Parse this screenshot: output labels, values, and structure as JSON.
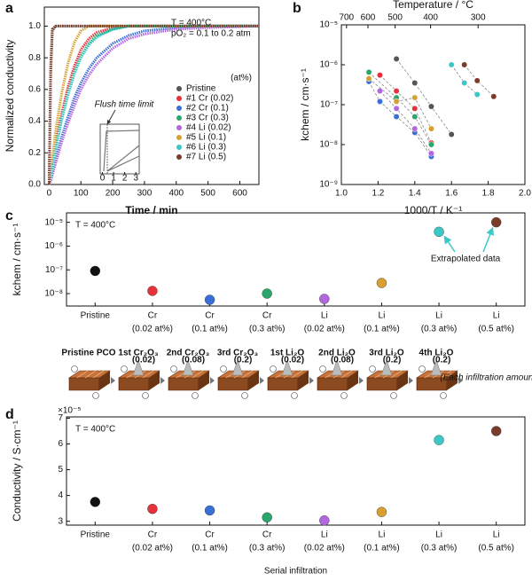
{
  "chart_data": [
    {
      "type": "line",
      "panel_label": "a",
      "x_label": "Time / min",
      "y_label": "Normalized conductivity",
      "annotations": [
        "T = 400°C",
        "pO₂ = 0.1 to 0.2 atm"
      ],
      "legend_title": "(at%)",
      "legend_position": "lower right",
      "x": [
        0,
        5,
        10,
        20,
        40,
        60,
        80,
        100,
        125,
        150,
        200,
        250,
        300,
        400,
        500,
        660
      ],
      "series": [
        {
          "name": "Pristine",
          "color": "#555555",
          "values": [
            0,
            0.7,
            0.97,
            1,
            1,
            1,
            1,
            1,
            1,
            1,
            1,
            1,
            1,
            1,
            1,
            1
          ]
        },
        {
          "name": "#1 Cr (0.02)",
          "color": "#e8303a",
          "values": [
            0,
            0.05,
            0.12,
            0.25,
            0.45,
            0.62,
            0.75,
            0.85,
            0.92,
            0.96,
            0.99,
            1,
            1,
            1,
            1,
            1
          ]
        },
        {
          "name": "#2 Cr (0.1)",
          "color": "#3a6fd8",
          "values": [
            0,
            0.03,
            0.07,
            0.15,
            0.3,
            0.43,
            0.55,
            0.64,
            0.73,
            0.8,
            0.89,
            0.94,
            0.97,
            0.99,
            1,
            1
          ]
        },
        {
          "name": "#3 Cr (0.3)",
          "color": "#2aa76a",
          "values": [
            0,
            0.04,
            0.1,
            0.22,
            0.42,
            0.58,
            0.71,
            0.81,
            0.89,
            0.94,
            0.98,
            1,
            1,
            1,
            1,
            1
          ]
        },
        {
          "name": "#4 Li (0.02)",
          "color": "#b266e0",
          "values": [
            0,
            0.02,
            0.06,
            0.13,
            0.27,
            0.39,
            0.5,
            0.6,
            0.69,
            0.76,
            0.86,
            0.92,
            0.95,
            0.98,
            0.99,
            1
          ]
        },
        {
          "name": "#5 Li (0.1)",
          "color": "#d8a030",
          "values": [
            0,
            0.07,
            0.16,
            0.33,
            0.58,
            0.77,
            0.9,
            0.97,
            1,
            1,
            1,
            1,
            1,
            1,
            1,
            1
          ]
        },
        {
          "name": "#6 Li (0.3)",
          "color": "#3cc8c8",
          "values": [
            0,
            0.04,
            0.1,
            0.21,
            0.41,
            0.57,
            0.7,
            0.8,
            0.88,
            0.93,
            0.98,
            1,
            1,
            1,
            1,
            1
          ]
        },
        {
          "name": "#7 Li (0.5)",
          "color": "#7a3b2a",
          "values": [
            0,
            0.75,
            0.98,
            1,
            1,
            1,
            1,
            1,
            1,
            1,
            1,
            1,
            1,
            1,
            1,
            1
          ]
        }
      ],
      "xlim": [
        -15,
        660
      ],
      "xticks": [
        0,
        100,
        200,
        300,
        400,
        500,
        600
      ],
      "ylim": [
        0,
        1.12
      ],
      "yticks": [
        {
          "value": 0,
          "label": "0.0"
        },
        {
          "value": 0.2,
          "label": "0.2"
        },
        {
          "value": 0.4,
          "label": "0.4"
        },
        {
          "value": 0.6,
          "label": "0.6"
        },
        {
          "value": 0.8,
          "label": "0.8"
        },
        {
          "value": 1,
          "label": "1.0"
        }
      ],
      "inset": {
        "annotation": "Flush time limit",
        "xlim": [
          -0.2,
          3.3
        ],
        "xticks": [
          0,
          1,
          2,
          3
        ]
      }
    },
    {
      "type": "scatter",
      "panel_label": "b",
      "x_label": "1000/T / K⁻¹",
      "y_label": "kchem / cm·s⁻¹",
      "log_y": true,
      "xlim": [
        1.0,
        2.0
      ],
      "xticks": [
        {
          "value": 1,
          "label": "1.0"
        },
        {
          "value": 1.2,
          "label": "1.2"
        },
        {
          "value": 1.4,
          "label": "1.4"
        },
        {
          "value": 1.6,
          "label": "1.6"
        },
        {
          "value": 1.8,
          "label": "1.8"
        },
        {
          "value": 2,
          "label": "2.0"
        }
      ],
      "ylim": [
        1e-09,
        1e-05
      ],
      "yticks": [
        {
          "value": 1e-09,
          "label": "10⁻⁹"
        },
        {
          "value": 1e-08,
          "label": "10⁻⁸"
        },
        {
          "value": 1e-07,
          "label": "10⁻⁷"
        },
        {
          "value": 1e-06,
          "label": "10⁻⁶"
        },
        {
          "value": 1e-05,
          "label": "10⁻⁵"
        }
      ],
      "top_axis": {
        "label": "Temperature / °C",
        "ticks": [
          {
            "value": 1.028,
            "label": "700"
          },
          {
            "value": 1.145,
            "label": "600"
          },
          {
            "value": 1.293,
            "label": "500"
          },
          {
            "value": 1.486,
            "label": "400"
          },
          {
            "value": 1.745,
            "label": "300"
          }
        ]
      },
      "series": [
        {
          "color": "#555555",
          "x": [
            1.3,
            1.4,
            1.49,
            1.6
          ],
          "values": [
            1.4e-06,
            3.5e-07,
            9e-08,
            1.8e-08
          ]
        },
        {
          "color": "#e8303a",
          "x": [
            1.21,
            1.3,
            1.4,
            1.49
          ],
          "values": [
            5.5e-07,
            2.2e-07,
            8e-08,
            1.1e-08
          ]
        },
        {
          "color": "#3a6fd8",
          "x": [
            1.15,
            1.21,
            1.3,
            1.4,
            1.49
          ],
          "values": [
            3.8e-07,
            1.2e-07,
            5e-08,
            2e-08,
            5e-09
          ]
        },
        {
          "color": "#2aa76a",
          "x": [
            1.15,
            1.3,
            1.4,
            1.49
          ],
          "values": [
            6.5e-07,
            1.5e-07,
            5e-08,
            1e-08
          ]
        },
        {
          "color": "#b266e0",
          "x": [
            1.21,
            1.3,
            1.4,
            1.49
          ],
          "values": [
            2.2e-07,
            8e-08,
            2.5e-08,
            6e-09
          ]
        },
        {
          "color": "#d8a030",
          "x": [
            1.15,
            1.3,
            1.4,
            1.49
          ],
          "values": [
            4.5e-07,
            1.2e-07,
            1.5e-07,
            2.5e-08
          ]
        },
        {
          "color": "#3cc8c8",
          "x": [
            1.6,
            1.67,
            1.74
          ],
          "values": [
            1e-06,
            3.5e-07,
            1.8e-07
          ]
        },
        {
          "color": "#7a3b2a",
          "x": [
            1.67,
            1.74,
            1.83
          ],
          "values": [
            1e-06,
            4e-07,
            1.6e-07
          ]
        }
      ]
    },
    {
      "type": "category-scatter",
      "panel_label": "c",
      "y_label": "kchem / cm·s⁻¹",
      "log_y": true,
      "annotations": [
        "T = 400°C"
      ],
      "callout": "Extrapolated data",
      "categories": [
        [
          "Pristine"
        ],
        [
          "Cr",
          "(0.02 at%)"
        ],
        [
          "Cr",
          "(0.1 at%)"
        ],
        [
          "Cr",
          "(0.3 at%)"
        ],
        [
          "Li",
          "(0.02 at%)"
        ],
        [
          "Li",
          "(0.1 at%)"
        ],
        [
          "Li",
          "(0.3 at%)"
        ],
        [
          "Li",
          "(0.5 at%)"
        ]
      ],
      "values": [
        9e-08,
        1.3e-08,
        5.5e-09,
        1e-08,
        6e-09,
        2.8e-08,
        4e-06,
        1e-05
      ],
      "colors": [
        "#111111",
        "#e8303a",
        "#3a6fd8",
        "#2aa76a",
        "#b266e0",
        "#d8a030",
        "#3cc8c8",
        "#7a3b2a"
      ],
      "ylim": [
        3e-09,
        2.5e-05
      ],
      "yticks": [
        {
          "value": 1e-08,
          "label": "10⁻⁸"
        },
        {
          "value": 1e-07,
          "label": "10⁻⁷"
        },
        {
          "value": 1e-06,
          "label": "10⁻⁶"
        },
        {
          "value": 1e-05,
          "label": "10⁻⁵"
        }
      ]
    },
    {
      "type": "category-scatter",
      "panel_label": "d",
      "x_label": "Serial infiltration",
      "y_label": "Conductivity / S·cm⁻¹",
      "y_multiplier": "×10⁻⁵",
      "annotations": [
        "T = 400°C"
      ],
      "categories": [
        [
          "Pristine"
        ],
        [
          "Cr",
          "(0.02 at%)"
        ],
        [
          "Cr",
          "(0.1 at%)"
        ],
        [
          "Cr",
          "(0.3 at%)"
        ],
        [
          "Li",
          "(0.02 at%)"
        ],
        [
          "Li",
          "(0.1 at%)"
        ],
        [
          "Li",
          "(0.3 at%)"
        ],
        [
          "Li",
          "(0.5 at%)"
        ]
      ],
      "values": [
        3.75e-05,
        3.48e-05,
        3.42e-05,
        3.15e-05,
        3.03e-05,
        3.36e-05,
        6.15e-05,
        6.5e-05
      ],
      "colors": [
        "#111111",
        "#e8303a",
        "#3a6fd8",
        "#2aa76a",
        "#b266e0",
        "#d8a030",
        "#3cc8c8",
        "#7a3b2a"
      ],
      "ylim": [
        2.85e-05,
        7.05e-05
      ],
      "yticks": [
        {
          "value": 3e-05,
          "label": "3"
        },
        {
          "value": 4e-05,
          "label": "4"
        },
        {
          "value": 5e-05,
          "label": "5"
        },
        {
          "value": 6e-05,
          "label": "6"
        },
        {
          "value": 7e-05,
          "label": "7"
        }
      ]
    }
  ],
  "schematic": {
    "steps": [
      {
        "title": "Pristine PCO"
      },
      {
        "title": "1st Cr₂O₃",
        "amount": "(0.02)",
        "color": "#2aa76a"
      },
      {
        "title": "2nd Cr₂O₃",
        "amount": "(0.08)",
        "color": "#2aa76a"
      },
      {
        "title": "3rd Cr₂O₃",
        "amount": "(0.2)",
        "color": "#2aa76a"
      },
      {
        "title": "1st Li₂O",
        "amount": "(0.02)",
        "color": "#8a3fb0"
      },
      {
        "title": "2nd Li₂O",
        "amount": "(0.08)",
        "color": "#8a3fb0"
      },
      {
        "title": "3rd Li₂O",
        "amount": "(0.2)",
        "color": "#8a3fb0"
      },
      {
        "title": "4th Li₂O",
        "amount": "(0.2)",
        "color": "#8a3fb0"
      }
    ],
    "note": "(Each infiltration amount)"
  }
}
